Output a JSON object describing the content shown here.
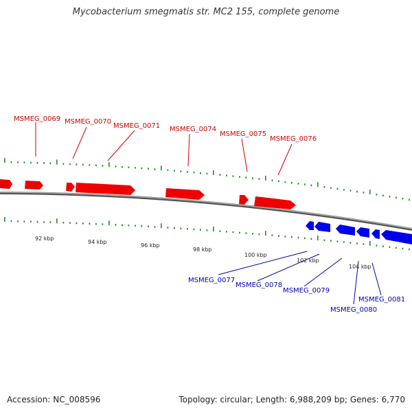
{
  "title": "Mycobacterium smegmatis str. MC2 155, complete genome",
  "footer": {
    "accession": "Accession: NC_008596",
    "summary": "Topology: circular; Length: 6,988,209 bp; Genes: 6,770"
  },
  "colors": {
    "forward": "#ee0000",
    "reverse": "#0000ee",
    "tick": "#228b22",
    "backbone": "#777777"
  },
  "forward_genes": [
    "MSMEG_0069",
    "MSMEG_0070",
    "MSMEG_0071",
    "MSMEG_0074",
    "MSMEG_0075",
    "MSMEG_0076"
  ],
  "reverse_genes": [
    "MSMEG_0077",
    "MSMEG_0078",
    "MSMEG_0079",
    "MSMEG_0080",
    "MSMEG_0081"
  ],
  "scale_labels": [
    "92 kbp",
    "94 kbp",
    "96 kbp",
    "98 kbp",
    "100 kbp",
    "102 kbp",
    "104 kbp"
  ]
}
